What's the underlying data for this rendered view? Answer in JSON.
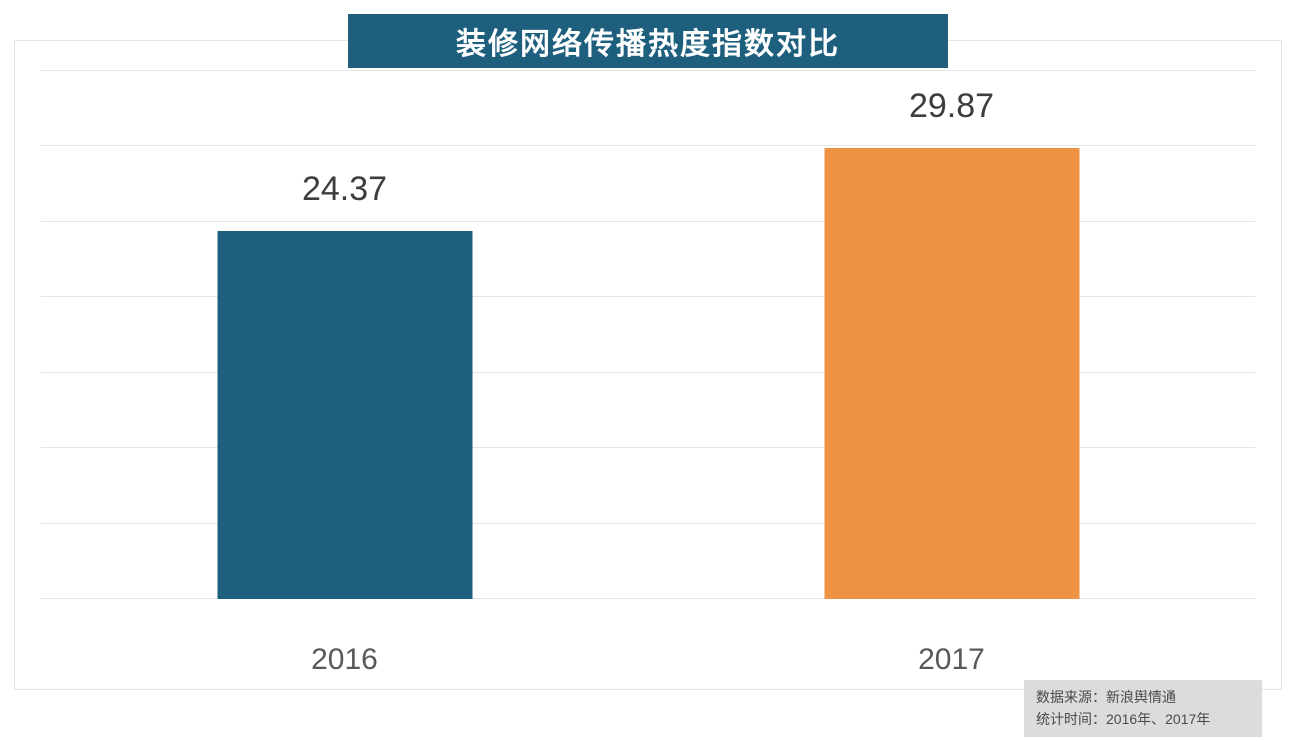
{
  "title": "装修网络传播热度指数对比",
  "chart_data": {
    "type": "bar",
    "title": "装修网络传播热度指数对比",
    "categories": [
      "2016",
      "2017"
    ],
    "values": [
      24.37,
      29.87
    ],
    "value_labels": [
      "24.37",
      "29.87"
    ],
    "bar_colors": [
      "#1e5f7e",
      "#ee9344"
    ],
    "xlabel": "",
    "ylabel": "",
    "ylim": [
      0,
      35
    ],
    "gridline_step": 5,
    "grid": true,
    "legend": "none"
  },
  "source_note": {
    "line1": "数据来源：新浪舆情通",
    "line2": "统计时间：2016年、2017年"
  },
  "colors": {
    "title_bg": "#1e5f7e",
    "bar_2016": "#1e5f7e",
    "bar_2017": "#ee9344",
    "gridline": "#e5e5e5",
    "value_text": "#3d3d3d",
    "axis_text": "#595959",
    "note_bg": "#dcdcdc",
    "note_text": "#4a4a4a"
  }
}
